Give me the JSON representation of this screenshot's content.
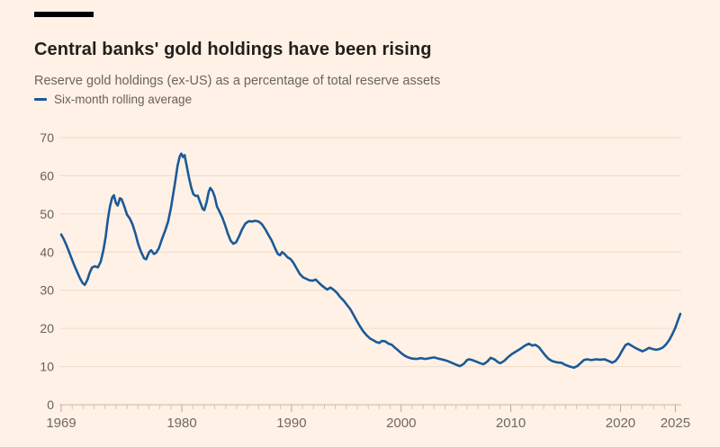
{
  "header": {
    "title": "Central banks' gold holdings have been rising",
    "subtitle": "Reserve gold holdings (ex-US) as a percentage of total reserve assets"
  },
  "legend": {
    "series_label": "Six-month rolling average"
  },
  "colors": {
    "background": "#fff1e5",
    "accent_bar": "#000000",
    "title_text": "#221f1b",
    "muted_text": "#66605b",
    "axis_label_text": "#6f6861",
    "gridline": "#eddccb",
    "zero_line": "#cbb8a5",
    "minor_tick": "#d6c5b3",
    "major_tick": "#b9a795",
    "line": "#1a5a99"
  },
  "chart_data": {
    "type": "line",
    "title": "Central banks' gold holdings have been rising",
    "subtitle": "Reserve gold holdings (ex-US) as a percentage of total reserve assets",
    "xlabel": "",
    "ylabel": "",
    "grid": "horizontal",
    "legend_position": "top-left",
    "xlim": [
      1969,
      2025.6
    ],
    "ylim": [
      0,
      70
    ],
    "y_ticks": [
      0,
      10,
      20,
      30,
      40,
      50,
      60,
      70
    ],
    "x_ticks_labeled": [
      1969,
      1980,
      1990,
      2000,
      2010,
      2020,
      2025
    ],
    "x_minor_tick_interval": 1,
    "series": [
      {
        "name": "Six-month rolling average",
        "points": [
          [
            1969.0,
            44.6
          ],
          [
            1969.2,
            43.6
          ],
          [
            1969.45,
            42.0
          ],
          [
            1969.7,
            40.2
          ],
          [
            1969.95,
            38.3
          ],
          [
            1970.2,
            36.5
          ],
          [
            1970.45,
            34.8
          ],
          [
            1970.7,
            33.2
          ],
          [
            1970.95,
            31.9
          ],
          [
            1971.15,
            31.4
          ],
          [
            1971.4,
            32.8
          ],
          [
            1971.6,
            34.6
          ],
          [
            1971.8,
            35.9
          ],
          [
            1972.05,
            36.3
          ],
          [
            1972.35,
            36.0
          ],
          [
            1972.6,
            37.5
          ],
          [
            1972.85,
            40.5
          ],
          [
            1973.05,
            44.0
          ],
          [
            1973.25,
            48.5
          ],
          [
            1973.45,
            52.0
          ],
          [
            1973.65,
            54.3
          ],
          [
            1973.8,
            54.9
          ],
          [
            1974.0,
            52.8
          ],
          [
            1974.15,
            52.2
          ],
          [
            1974.35,
            54.1
          ],
          [
            1974.5,
            53.9
          ],
          [
            1974.75,
            52.0
          ],
          [
            1975.0,
            49.8
          ],
          [
            1975.25,
            48.8
          ],
          [
            1975.5,
            47.3
          ],
          [
            1975.75,
            45.0
          ],
          [
            1976.0,
            42.3
          ],
          [
            1976.25,
            40.3
          ],
          [
            1976.55,
            38.4
          ],
          [
            1976.75,
            38.1
          ],
          [
            1977.0,
            39.9
          ],
          [
            1977.2,
            40.5
          ],
          [
            1977.45,
            39.5
          ],
          [
            1977.65,
            39.8
          ],
          [
            1977.9,
            41.0
          ],
          [
            1978.2,
            43.5
          ],
          [
            1978.5,
            45.8
          ],
          [
            1978.75,
            48.0
          ],
          [
            1979.0,
            51.5
          ],
          [
            1979.2,
            55.0
          ],
          [
            1979.4,
            58.5
          ],
          [
            1979.6,
            62.5
          ],
          [
            1979.8,
            65.0
          ],
          [
            1979.95,
            65.8
          ],
          [
            1980.1,
            64.9
          ],
          [
            1980.25,
            65.4
          ],
          [
            1980.45,
            62.5
          ],
          [
            1980.65,
            59.5
          ],
          [
            1980.85,
            57.0
          ],
          [
            1981.05,
            55.2
          ],
          [
            1981.25,
            54.7
          ],
          [
            1981.45,
            54.8
          ],
          [
            1981.65,
            53.3
          ],
          [
            1981.9,
            51.3
          ],
          [
            1982.05,
            51.0
          ],
          [
            1982.25,
            53.0
          ],
          [
            1982.45,
            55.8
          ],
          [
            1982.6,
            56.8
          ],
          [
            1982.8,
            56.0
          ],
          [
            1983.0,
            54.5
          ],
          [
            1983.2,
            52.0
          ],
          [
            1983.45,
            50.5
          ],
          [
            1983.7,
            49.0
          ],
          [
            1983.95,
            47.0
          ],
          [
            1984.2,
            44.8
          ],
          [
            1984.45,
            43.0
          ],
          [
            1984.7,
            42.2
          ],
          [
            1984.95,
            42.6
          ],
          [
            1985.2,
            44.0
          ],
          [
            1985.5,
            46.0
          ],
          [
            1985.8,
            47.5
          ],
          [
            1986.1,
            48.1
          ],
          [
            1986.4,
            48.0
          ],
          [
            1986.7,
            48.2
          ],
          [
            1987.0,
            48.0
          ],
          [
            1987.3,
            47.3
          ],
          [
            1987.6,
            46.0
          ],
          [
            1987.9,
            44.5
          ],
          [
            1988.2,
            43.0
          ],
          [
            1988.5,
            41.0
          ],
          [
            1988.75,
            39.5
          ],
          [
            1988.95,
            39.2
          ],
          [
            1989.15,
            40.0
          ],
          [
            1989.4,
            39.4
          ],
          [
            1989.65,
            38.6
          ],
          [
            1989.9,
            38.2
          ],
          [
            1990.15,
            37.3
          ],
          [
            1990.45,
            35.8
          ],
          [
            1990.75,
            34.3
          ],
          [
            1991.05,
            33.4
          ],
          [
            1991.35,
            33.0
          ],
          [
            1991.65,
            32.6
          ],
          [
            1991.95,
            32.5
          ],
          [
            1992.2,
            32.8
          ],
          [
            1992.45,
            32.1
          ],
          [
            1992.7,
            31.4
          ],
          [
            1993.0,
            30.7
          ],
          [
            1993.25,
            30.2
          ],
          [
            1993.55,
            30.7
          ],
          [
            1993.85,
            30.1
          ],
          [
            1994.15,
            29.3
          ],
          [
            1994.45,
            28.2
          ],
          [
            1994.75,
            27.3
          ],
          [
            1995.05,
            26.2
          ],
          [
            1995.35,
            25.1
          ],
          [
            1995.65,
            23.6
          ],
          [
            1995.95,
            22.0
          ],
          [
            1996.25,
            20.5
          ],
          [
            1996.55,
            19.2
          ],
          [
            1996.85,
            18.2
          ],
          [
            1997.15,
            17.4
          ],
          [
            1997.45,
            16.9
          ],
          [
            1997.75,
            16.4
          ],
          [
            1998.0,
            16.2
          ],
          [
            1998.25,
            16.7
          ],
          [
            1998.55,
            16.6
          ],
          [
            1998.85,
            16.0
          ],
          [
            1999.15,
            15.7
          ],
          [
            1999.45,
            14.9
          ],
          [
            1999.75,
            14.2
          ],
          [
            2000.05,
            13.4
          ],
          [
            2000.35,
            12.8
          ],
          [
            2000.65,
            12.4
          ],
          [
            2001.0,
            12.1
          ],
          [
            2001.4,
            12.0
          ],
          [
            2001.8,
            12.2
          ],
          [
            2002.2,
            12.0
          ],
          [
            2002.6,
            12.2
          ],
          [
            2003.0,
            12.4
          ],
          [
            2003.4,
            12.1
          ],
          [
            2003.8,
            11.8
          ],
          [
            2004.2,
            11.5
          ],
          [
            2004.6,
            11.0
          ],
          [
            2005.0,
            10.5
          ],
          [
            2005.35,
            10.1
          ],
          [
            2005.7,
            10.7
          ],
          [
            2006.0,
            11.7
          ],
          [
            2006.2,
            11.9
          ],
          [
            2006.5,
            11.7
          ],
          [
            2006.85,
            11.3
          ],
          [
            2007.2,
            10.9
          ],
          [
            2007.5,
            10.6
          ],
          [
            2007.85,
            11.3
          ],
          [
            2008.15,
            12.3
          ],
          [
            2008.5,
            11.9
          ],
          [
            2008.85,
            11.1
          ],
          [
            2009.05,
            10.9
          ],
          [
            2009.4,
            11.5
          ],
          [
            2009.75,
            12.5
          ],
          [
            2010.1,
            13.3
          ],
          [
            2010.5,
            14.0
          ],
          [
            2010.9,
            14.7
          ],
          [
            2011.3,
            15.5
          ],
          [
            2011.65,
            16.0
          ],
          [
            2011.95,
            15.5
          ],
          [
            2012.25,
            15.7
          ],
          [
            2012.55,
            15.1
          ],
          [
            2012.85,
            14.0
          ],
          [
            2013.15,
            12.9
          ],
          [
            2013.45,
            12.0
          ],
          [
            2013.8,
            11.4
          ],
          [
            2014.2,
            11.1
          ],
          [
            2014.6,
            11.0
          ],
          [
            2015.0,
            10.4
          ],
          [
            2015.4,
            10.0
          ],
          [
            2015.75,
            9.7
          ],
          [
            2016.05,
            10.1
          ],
          [
            2016.35,
            10.9
          ],
          [
            2016.65,
            11.7
          ],
          [
            2016.95,
            11.9
          ],
          [
            2017.35,
            11.7
          ],
          [
            2017.75,
            11.9
          ],
          [
            2018.15,
            11.8
          ],
          [
            2018.55,
            11.9
          ],
          [
            2018.95,
            11.4
          ],
          [
            2019.25,
            11.0
          ],
          [
            2019.55,
            11.5
          ],
          [
            2019.85,
            12.6
          ],
          [
            2020.15,
            14.2
          ],
          [
            2020.45,
            15.6
          ],
          [
            2020.7,
            16.0
          ],
          [
            2021.0,
            15.5
          ],
          [
            2021.35,
            14.9
          ],
          [
            2021.7,
            14.4
          ],
          [
            2022.0,
            14.0
          ],
          [
            2022.3,
            14.4
          ],
          [
            2022.6,
            14.9
          ],
          [
            2022.95,
            14.6
          ],
          [
            2023.25,
            14.4
          ],
          [
            2023.55,
            14.6
          ],
          [
            2023.85,
            15.0
          ],
          [
            2024.15,
            15.8
          ],
          [
            2024.45,
            17.0
          ],
          [
            2024.75,
            18.6
          ],
          [
            2025.0,
            20.2
          ],
          [
            2025.2,
            21.8
          ],
          [
            2025.45,
            23.8
          ]
        ]
      }
    ]
  }
}
